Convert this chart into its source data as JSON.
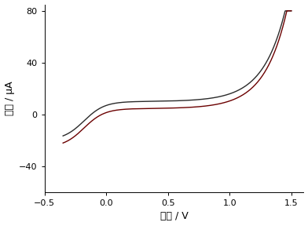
{
  "xlabel": "电压 / V",
  "ylabel": "电流 / μA",
  "xlim": [
    -0.5,
    1.6
  ],
  "ylim": [
    -60,
    85
  ],
  "xticks": [
    -0.5,
    0.0,
    0.5,
    1.0,
    1.5
  ],
  "yticks": [
    -40,
    0,
    40,
    80
  ],
  "line_color_forward": "#2a2a2a",
  "line_color_backward": "#6b0000",
  "background_color": "#ffffff",
  "linewidth": 1.0,
  "font_size_label": 9,
  "font_size_tick": 8
}
